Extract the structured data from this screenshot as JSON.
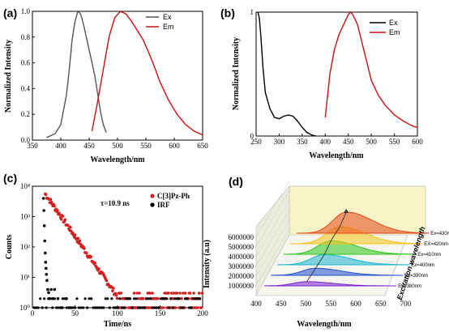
{
  "panels": {
    "a": {
      "label": "(a)"
    },
    "b": {
      "label": "(b)"
    },
    "c": {
      "label": "(c)"
    },
    "d": {
      "label": "(d)"
    }
  },
  "chart_data": [
    {
      "id": "a",
      "type": "line",
      "xlabel": "Wavelength/nm",
      "ylabel": "Normalized Intensity",
      "xlim": [
        350,
        650
      ],
      "ylim": [
        0.0,
        1.0
      ],
      "xticks": [
        "350",
        "400",
        "450",
        "500",
        "550",
        "600",
        "650"
      ],
      "yticks": [
        "0.0",
        "0.2",
        "0.4",
        "0.6",
        "0.8",
        "1.0"
      ],
      "legend_position": "top-right",
      "series": [
        {
          "name": "Ex",
          "color": "#555555",
          "x": [
            375,
            390,
            400,
            410,
            415,
            420,
            425,
            430,
            435,
            440,
            445,
            450,
            455,
            460,
            465,
            470,
            475,
            480
          ],
          "y": [
            0.02,
            0.05,
            0.12,
            0.35,
            0.55,
            0.78,
            0.92,
            1.0,
            0.98,
            0.9,
            0.8,
            0.7,
            0.6,
            0.5,
            0.36,
            0.22,
            0.12,
            0.06
          ]
        },
        {
          "name": "Em",
          "color": "#cc1111",
          "x": [
            455,
            465,
            475,
            485,
            495,
            505,
            515,
            525,
            535,
            545,
            555,
            565,
            575,
            590,
            605,
            620,
            635,
            650
          ],
          "y": [
            0.07,
            0.3,
            0.55,
            0.8,
            0.95,
            1.0,
            0.98,
            0.92,
            0.85,
            0.78,
            0.68,
            0.57,
            0.45,
            0.31,
            0.2,
            0.12,
            0.07,
            0.04
          ]
        }
      ]
    },
    {
      "id": "b",
      "type": "line",
      "xlabel": "Wavelength/nm",
      "ylabel": "Normalized Intensity",
      "xlim": [
        250,
        600
      ],
      "ylim": [
        0,
        1
      ],
      "xticks": [
        "250",
        "300",
        "350",
        "400",
        "450",
        "500",
        "550",
        "600"
      ],
      "yticks": [
        "0",
        "1"
      ],
      "legend_position": "top-right",
      "series": [
        {
          "name": "Ex",
          "color": "#000000",
          "x": [
            254,
            257,
            260,
            265,
            270,
            280,
            290,
            300,
            310,
            320,
            330,
            340,
            350,
            360,
            370,
            380
          ],
          "y": [
            1.0,
            0.95,
            0.82,
            0.55,
            0.35,
            0.22,
            0.15,
            0.14,
            0.16,
            0.17,
            0.16,
            0.12,
            0.07,
            0.03,
            0.01,
            0.0
          ]
        },
        {
          "name": "Em",
          "color": "#cc1111",
          "x": [
            400,
            405,
            410,
            420,
            430,
            440,
            450,
            455,
            460,
            470,
            480,
            490,
            500,
            515,
            530,
            550,
            570,
            590,
            600
          ],
          "y": [
            0.15,
            0.32,
            0.5,
            0.7,
            0.82,
            0.9,
            0.98,
            1.0,
            0.98,
            0.9,
            0.75,
            0.6,
            0.45,
            0.33,
            0.25,
            0.17,
            0.12,
            0.08,
            0.07
          ]
        }
      ]
    },
    {
      "id": "c",
      "type": "scatter",
      "xlabel": "Time/ns",
      "ylabel": "Counts",
      "xlim": [
        0,
        200
      ],
      "ylim_log10": [
        0,
        4
      ],
      "xticks": [
        "0",
        "50",
        "100",
        "150",
        "200"
      ],
      "yticks": [
        "10⁰",
        "10¹",
        "10²",
        "10³",
        "10⁴"
      ],
      "legend_position": "top-right",
      "annotation": "τ=10.9 ns",
      "series": [
        {
          "name": "C[3]Pz-Ph",
          "color": "#d42020"
        },
        {
          "name": "IRF",
          "color": "#000000"
        }
      ]
    },
    {
      "id": "d",
      "type": "area",
      "xlabel": "Wavelength/nm",
      "ylabel": "Intensity (a.u)",
      "xticks": [
        "400",
        "450",
        "500",
        "550",
        "600",
        "650",
        "700"
      ],
      "yticks": [
        "1000000",
        "2000000",
        "3000000",
        "4000000",
        "5000000",
        "6000000"
      ],
      "depth_label": "Excitation wavelength",
      "series": [
        {
          "name": "Ex=380nm",
          "color": "#7b1fd1",
          "peak_nm": 490,
          "peak": 1300000
        },
        {
          "name": "Ex=390nm",
          "color": "#1f4fd1",
          "peak_nm": 495,
          "peak": 2200000
        },
        {
          "name": "Ex=400nm",
          "color": "#19b4d1",
          "peak_nm": 500,
          "peak": 3200000
        },
        {
          "name": "Ex=410nm",
          "color": "#2ec51f",
          "peak_nm": 500,
          "peak": 4200000
        },
        {
          "name": "EX=420nm",
          "color": "#f2c21a",
          "peak_nm": 505,
          "peak": 5300000
        },
        {
          "name": "Ex=430nm",
          "color": "#e8451c",
          "peak_nm": 505,
          "peak": 6600000
        }
      ]
    }
  ]
}
